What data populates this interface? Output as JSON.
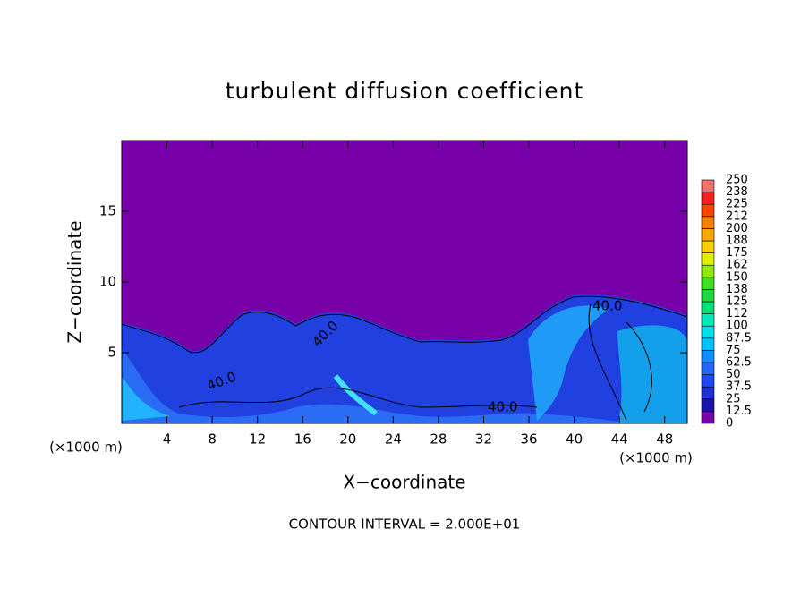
{
  "chart_data": {
    "type": "contour",
    "title": "turbulent diffusion coefficient",
    "x_label": "X−coordinate",
    "y_label": "Z−coordinate",
    "x_unit_left": "(×1000 m)",
    "x_unit_right": "(×1000 m)",
    "xlim": [
      0,
      50
    ],
    "xticks": [
      4,
      8,
      12,
      16,
      20,
      24,
      28,
      32,
      36,
      40,
      44,
      48
    ],
    "ylim": [
      0,
      20
    ],
    "yticks": [
      5,
      10,
      15
    ],
    "background_color": "#7800a8",
    "contour_labels": [
      "40.0",
      "40.0",
      "40.0",
      "40.0"
    ],
    "footnote": "CONTOUR INTERVAL = 2.000E+01",
    "colorbar": {
      "levels": [
        0,
        12.5,
        25,
        37.5,
        50,
        62.5,
        75,
        87.5,
        100,
        112,
        125,
        138,
        150,
        162,
        175,
        188,
        200,
        212,
        225,
        238,
        250
      ],
      "colors": [
        "#7800a8",
        "#1c14a8",
        "#1e30d0",
        "#2048f0",
        "#2068f8",
        "#1090ff",
        "#00c0ff",
        "#00e0e8",
        "#00e8b8",
        "#00e078",
        "#20d840",
        "#40e020",
        "#90e810",
        "#e0f000",
        "#f8d000",
        "#f8a800",
        "#f88000",
        "#f84800",
        "#f82020",
        "#f07070"
      ]
    }
  }
}
